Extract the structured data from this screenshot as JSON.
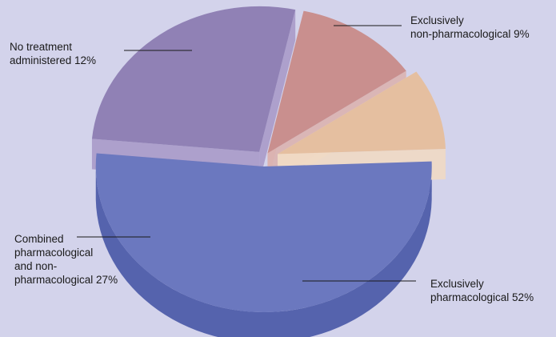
{
  "colors": {
    "background": "#d3d3eb",
    "leader": "#1a1a1a"
  },
  "chart_data": {
    "type": "pie",
    "style": "3d-exploded",
    "legend": "none",
    "slices": [
      {
        "label": "Exclusively pharmacological 52%",
        "label_lines": [
          "Exclusively",
          "pharmacological 52%"
        ],
        "value": 52,
        "top_color": "#6b78bf",
        "side_color": "#5563ad"
      },
      {
        "label": "Combined pharmacological and non-pharmacological 27%",
        "label_lines": [
          "Combined",
          "pharmacological",
          "and non-",
          "pharmacological 27%"
        ],
        "value": 27,
        "top_color": "#9081b5",
        "side_color": "#a89ac9"
      },
      {
        "label": "No treatment administered 12%",
        "label_lines": [
          "No treatment",
          "administered 12%"
        ],
        "value": 12,
        "top_color": "#c98f8e",
        "side_color": "#dab2b0"
      },
      {
        "label": "Exclusively non-pharmacological 9%",
        "label_lines": [
          "Exclusively",
          "non-pharmacological 9%"
        ],
        "value": 9,
        "top_color": "#e5bfa0",
        "side_color": "#efd9c4"
      }
    ]
  }
}
